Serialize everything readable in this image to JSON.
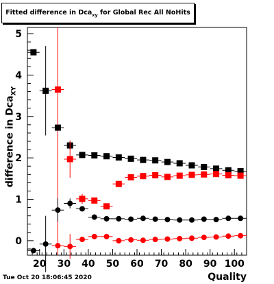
{
  "title": {
    "main": "Fitted difference in Dca",
    "sub": "xy",
    "rest": " for Global Rec All NoHits"
  },
  "ylabel": {
    "main": "difference in Dca",
    "sub": "XY"
  },
  "xlabel": "Quality",
  "timestamp": "Tue Oct 20 18:06:45 2020",
  "colors": {
    "black": "#000000",
    "red": "#ff0000"
  },
  "chart_data": {
    "type": "scatter",
    "xlim": [
      15,
      105
    ],
    "ylim": [
      -0.35,
      5.15
    ],
    "x_ticks": [
      20,
      30,
      40,
      50,
      60,
      70,
      80,
      90,
      100
    ],
    "y_ticks": [
      0,
      1,
      2,
      3,
      4,
      5
    ],
    "vertical_line_x": 27.5,
    "series": [
      {
        "marker": "square",
        "color": "#000000",
        "points": [
          {
            "x": 17.5,
            "y": 4.55,
            "err": 0.0
          },
          {
            "x": 22.5,
            "y": 3.62,
            "err": 1.08
          },
          {
            "x": 27.5,
            "y": 2.73,
            "err": 0.0
          },
          {
            "x": 32.5,
            "y": 2.3,
            "err": 0.1
          },
          {
            "x": 37.5,
            "y": 2.07,
            "err": 0.05
          },
          {
            "x": 42.5,
            "y": 2.06,
            "err": 0.04
          },
          {
            "x": 47.5,
            "y": 2.04,
            "err": 0.04
          },
          {
            "x": 52.5,
            "y": 2.01,
            "err": 0.04
          },
          {
            "x": 57.5,
            "y": 1.98,
            "err": 0.03
          },
          {
            "x": 62.5,
            "y": 1.95,
            "err": 0.03
          },
          {
            "x": 67.5,
            "y": 1.94,
            "err": 0.03
          },
          {
            "x": 72.5,
            "y": 1.9,
            "err": 0.03
          },
          {
            "x": 77.5,
            "y": 1.87,
            "err": 0.03
          },
          {
            "x": 82.5,
            "y": 1.82,
            "err": 0.03
          },
          {
            "x": 87.5,
            "y": 1.78,
            "err": 0.03
          },
          {
            "x": 92.5,
            "y": 1.74,
            "err": 0.03
          },
          {
            "x": 97.5,
            "y": 1.7,
            "err": 0.03
          },
          {
            "x": 102.5,
            "y": 1.68,
            "err": 0.03
          }
        ]
      },
      {
        "marker": "square",
        "color": "#ff0000",
        "points": [
          {
            "x": 27.5,
            "y": 3.65,
            "err": 0.0
          },
          {
            "x": 32.5,
            "y": 1.97,
            "err": 0.45
          },
          {
            "x": 37.5,
            "y": 1.01,
            "err": 0.12
          },
          {
            "x": 42.5,
            "y": 0.97,
            "err": 0.06
          },
          {
            "x": 47.5,
            "y": 0.83,
            "err": 0.05
          },
          {
            "x": 52.5,
            "y": 1.37,
            "err": 0.04
          },
          {
            "x": 57.5,
            "y": 1.53,
            "err": 0.04
          },
          {
            "x": 62.5,
            "y": 1.56,
            "err": 0.04
          },
          {
            "x": 67.5,
            "y": 1.58,
            "err": 0.03
          },
          {
            "x": 72.5,
            "y": 1.54,
            "err": 0.03
          },
          {
            "x": 77.5,
            "y": 1.57,
            "err": 0.03
          },
          {
            "x": 82.5,
            "y": 1.59,
            "err": 0.03
          },
          {
            "x": 87.5,
            "y": 1.6,
            "err": 0.03
          },
          {
            "x": 92.5,
            "y": 1.61,
            "err": 0.03
          },
          {
            "x": 97.5,
            "y": 1.58,
            "err": 0.03
          },
          {
            "x": 102.5,
            "y": 1.57,
            "err": 0.03
          }
        ]
      },
      {
        "marker": "circle",
        "color": "#000000",
        "points": [
          {
            "x": 17.5,
            "y": -0.24,
            "err": 0.0
          },
          {
            "x": 22.5,
            "y": -0.08,
            "err": 0.68
          },
          {
            "x": 27.5,
            "y": 0.74,
            "err": 0.28
          },
          {
            "x": 32.5,
            "y": 0.9,
            "err": 0.12
          },
          {
            "x": 37.5,
            "y": 0.77,
            "err": 0.06
          },
          {
            "x": 42.5,
            "y": 0.57,
            "err": 0.04
          },
          {
            "x": 47.5,
            "y": 0.53,
            "err": 0.03
          },
          {
            "x": 52.5,
            "y": 0.53,
            "err": 0.03
          },
          {
            "x": 57.5,
            "y": 0.52,
            "err": 0.03
          },
          {
            "x": 62.5,
            "y": 0.54,
            "err": 0.03
          },
          {
            "x": 67.5,
            "y": 0.52,
            "err": 0.03
          },
          {
            "x": 72.5,
            "y": 0.51,
            "err": 0.03
          },
          {
            "x": 77.5,
            "y": 0.5,
            "err": 0.03
          },
          {
            "x": 82.5,
            "y": 0.5,
            "err": 0.03
          },
          {
            "x": 87.5,
            "y": 0.52,
            "err": 0.03
          },
          {
            "x": 92.5,
            "y": 0.51,
            "err": 0.03
          },
          {
            "x": 97.5,
            "y": 0.54,
            "err": 0.03
          },
          {
            "x": 102.5,
            "y": 0.54,
            "err": 0.03
          }
        ]
      },
      {
        "marker": "circle",
        "color": "#ff0000",
        "points": [
          {
            "x": 27.5,
            "y": -0.12,
            "err": 0.0
          },
          {
            "x": 32.5,
            "y": -0.14,
            "err": 0.3
          },
          {
            "x": 37.5,
            "y": 0.03,
            "err": 0.05
          },
          {
            "x": 42.5,
            "y": 0.1,
            "err": 0.04
          },
          {
            "x": 47.5,
            "y": 0.1,
            "err": 0.03
          },
          {
            "x": 52.5,
            "y": 0.0,
            "err": 0.02
          },
          {
            "x": 57.5,
            "y": 0.02,
            "err": 0.02
          },
          {
            "x": 62.5,
            "y": 0.01,
            "err": 0.02
          },
          {
            "x": 67.5,
            "y": 0.03,
            "err": 0.02
          },
          {
            "x": 72.5,
            "y": 0.04,
            "err": 0.02
          },
          {
            "x": 77.5,
            "y": 0.05,
            "err": 0.02
          },
          {
            "x": 82.5,
            "y": 0.06,
            "err": 0.02
          },
          {
            "x": 87.5,
            "y": 0.08,
            "err": 0.02
          },
          {
            "x": 92.5,
            "y": 0.09,
            "err": 0.02
          },
          {
            "x": 97.5,
            "y": 0.11,
            "err": 0.02
          },
          {
            "x": 102.5,
            "y": 0.12,
            "err": 0.02
          }
        ]
      }
    ]
  }
}
